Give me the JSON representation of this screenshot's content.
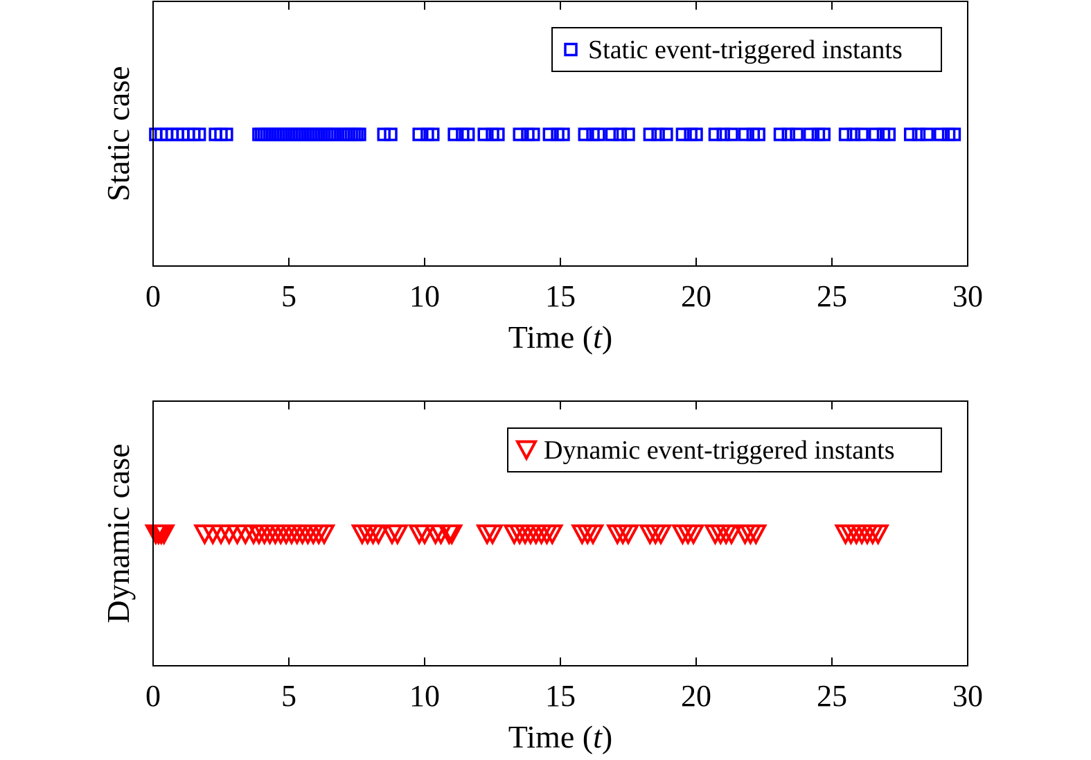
{
  "chart_data": [
    {
      "type": "scatter",
      "title": "",
      "xlabel": "Time (t)",
      "ylabel": "Static case",
      "xlim": [
        0,
        30
      ],
      "xticks": [
        0,
        5,
        10,
        15,
        20,
        25,
        30
      ],
      "grid": false,
      "legend_position": "top-right",
      "series": [
        {
          "name": "Static event-triggered instants",
          "marker": "square",
          "color": "#0000ff",
          "x": [
            0.1,
            0.3,
            0.5,
            0.7,
            0.9,
            1.1,
            1.3,
            1.5,
            1.7,
            2.3,
            2.5,
            2.7,
            3.9,
            4.0,
            4.1,
            4.2,
            4.3,
            4.4,
            4.5,
            4.6,
            4.7,
            4.8,
            4.9,
            5.0,
            5.1,
            5.2,
            5.3,
            5.4,
            5.5,
            5.6,
            5.7,
            5.8,
            5.9,
            6.0,
            6.1,
            6.2,
            6.3,
            6.4,
            6.5,
            6.6,
            6.7,
            7.0,
            7.1,
            7.2,
            7.3,
            7.4,
            7.5,
            7.6,
            8.5,
            8.75,
            9.8,
            10.1,
            10.3,
            11.1,
            11.4,
            11.6,
            12.2,
            12.5,
            12.7,
            13.5,
            13.8,
            14.0,
            14.6,
            14.9,
            15.1,
            15.9,
            16.2,
            16.4,
            16.9,
            17.2,
            17.5,
            18.3,
            18.6,
            18.9,
            19.5,
            19.8,
            20.0,
            20.7,
            21.0,
            21.3,
            21.8,
            22.1,
            22.3,
            23.1,
            23.4,
            23.7,
            24.2,
            24.5,
            24.7,
            25.5,
            25.8,
            26.1,
            26.6,
            26.9,
            27.1,
            27.9,
            28.2,
            28.5,
            29.0,
            29.3,
            29.5
          ]
        }
      ]
    },
    {
      "type": "scatter",
      "title": "",
      "xlabel": "Time (t)",
      "ylabel": "Dynamic case",
      "xlim": [
        0,
        30
      ],
      "xticks": [
        0,
        5,
        10,
        15,
        20,
        25,
        30
      ],
      "grid": false,
      "legend_position": "top-right",
      "series": [
        {
          "name": "Dynamic event-triggered instants",
          "marker": "triangle-down",
          "color": "#ff0000",
          "x": [
            0.1,
            0.2,
            0.3,
            0.4,
            1.9,
            2.2,
            2.5,
            2.8,
            3.1,
            3.4,
            3.7,
            3.9,
            4.1,
            4.3,
            4.5,
            4.7,
            4.9,
            5.1,
            5.3,
            5.5,
            5.7,
            5.9,
            6.1,
            6.3,
            7.7,
            7.9,
            8.1,
            8.3,
            8.8,
            9.0,
            9.8,
            10.0,
            10.4,
            10.6,
            10.9,
            11.0,
            12.3,
            12.5,
            13.3,
            13.5,
            13.7,
            13.9,
            14.1,
            14.3,
            14.5,
            14.7,
            15.8,
            16.0,
            16.2,
            17.1,
            17.3,
            17.5,
            18.3,
            18.5,
            18.7,
            19.5,
            19.7,
            19.9,
            20.7,
            20.9,
            21.1,
            21.3,
            21.8,
            22.0,
            22.2,
            25.5,
            25.7,
            25.9,
            26.1,
            26.3,
            26.5,
            26.7
          ]
        }
      ]
    }
  ]
}
